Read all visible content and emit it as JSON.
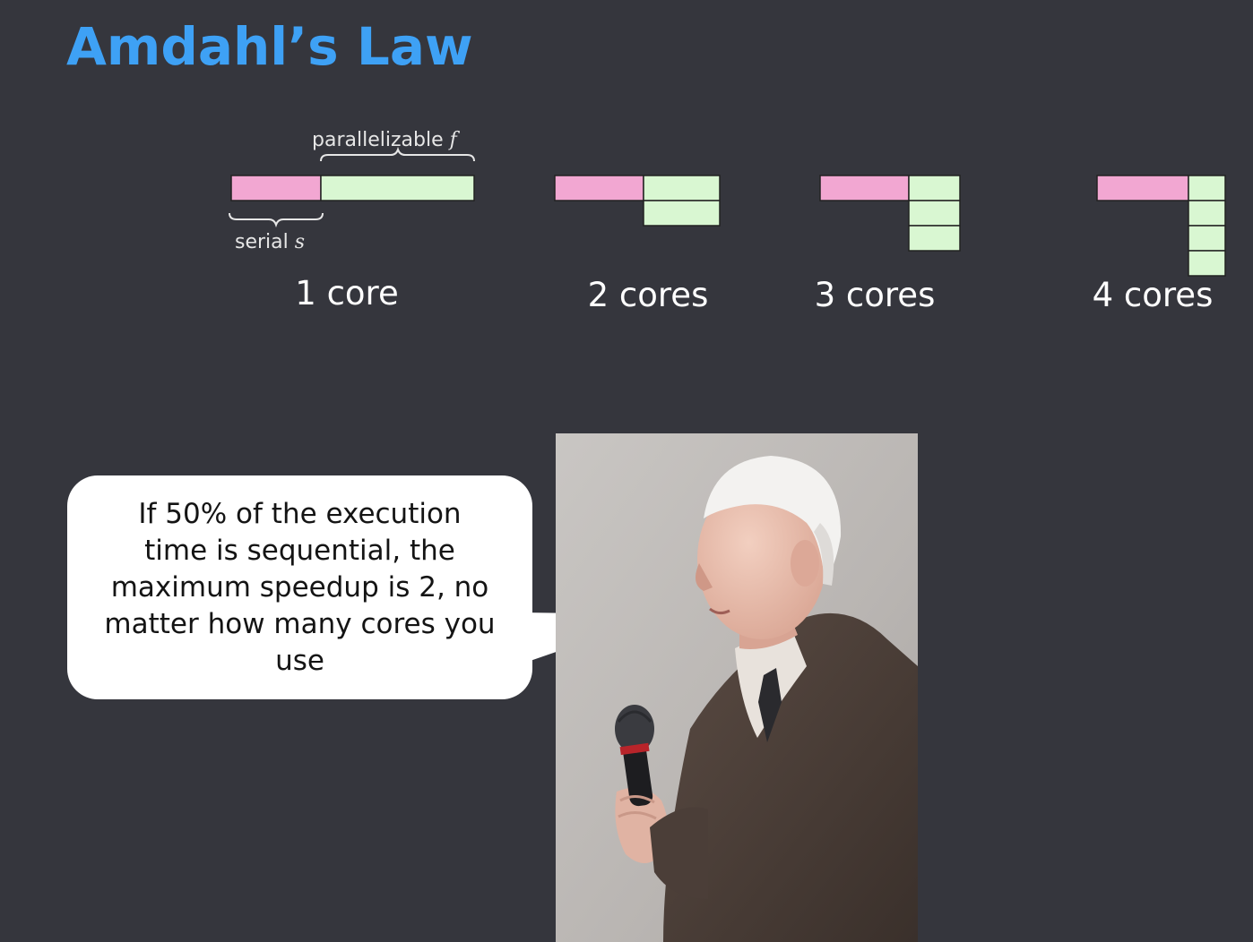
{
  "slide": {
    "title": "Amdahl’s Law",
    "background": "#35363d",
    "title_color": "#3ea1f5"
  },
  "diagram": {
    "serial_color": "#f2a7d2",
    "parallel_color": "#d9f7d2",
    "parallel_brace_label": "parallelizable",
    "parallel_brace_var": "f",
    "serial_brace_label": "serial",
    "serial_brace_var": "s",
    "groups": [
      {
        "label": "1 core",
        "cores": 1
      },
      {
        "label": "2 cores",
        "cores": 2
      },
      {
        "label": "3 cores",
        "cores": 3
      },
      {
        "label": "4 cores",
        "cores": 4
      }
    ]
  },
  "speech_bubble": {
    "text": "If 50% of the execution time is sequential, the maximum speedup is 2, no matter how many cores you use"
  },
  "photo": {
    "subject_icon": "elderly-man-with-microphone-photo"
  }
}
